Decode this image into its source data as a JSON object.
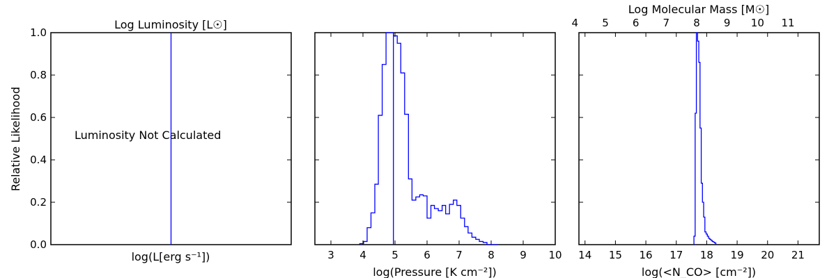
{
  "chart_data": [
    {
      "type": "line",
      "panel": "luminosity",
      "title": "Log Luminosity  [L☉]",
      "xlabel": "log(L[erg s⁻¹])",
      "ylabel": "Relative Likelihood",
      "ylim": [
        0,
        1
      ],
      "yticks": [
        "0.0",
        "0.2",
        "0.4",
        "0.6",
        "0.8",
        "1.0"
      ],
      "xticks": [],
      "annotation": "Luminosity Not Calculated",
      "vline_fraction": 0.5,
      "line_color": "#0000ff"
    },
    {
      "type": "histogram",
      "panel": "pressure",
      "xlabel": "log(Pressure [K cm⁻²])",
      "xlim": [
        2.5,
        10
      ],
      "ylim": [
        0,
        1
      ],
      "xticks": [
        3,
        4,
        5,
        6,
        7,
        8,
        9,
        10
      ],
      "bin_edges": [
        3.9,
        4.02,
        4.13,
        4.25,
        4.37,
        4.48,
        4.6,
        4.72,
        4.83,
        4.95,
        5.07,
        5.18,
        5.3,
        5.42,
        5.53,
        5.65,
        5.77,
        5.88,
        6.0,
        6.12,
        6.23,
        6.35,
        6.47,
        6.58,
        6.7,
        6.82,
        6.93,
        7.05,
        7.17,
        7.28,
        7.4,
        7.52,
        7.63,
        7.75,
        7.87,
        7.98,
        8.1,
        8.22
      ],
      "values": [
        0.005,
        0.015,
        0.08,
        0.15,
        0.285,
        0.61,
        0.85,
        1.0,
        1.0,
        0.985,
        0.95,
        0.81,
        0.615,
        0.31,
        0.21,
        0.225,
        0.235,
        0.23,
        0.125,
        0.185,
        0.17,
        0.16,
        0.185,
        0.145,
        0.19,
        0.21,
        0.185,
        0.125,
        0.085,
        0.055,
        0.035,
        0.025,
        0.015,
        0.01,
        0.0,
        0.0,
        0.0
      ],
      "vline_x": 4.95,
      "line_color": "#0000ff"
    },
    {
      "type": "histogram",
      "panel": "column-density",
      "xlabel": "log(<N_CO> [cm⁻²])",
      "top_xlabel": "Log Molecular Mass [M☉]",
      "xlim": [
        13.8,
        21.7
      ],
      "ylim": [
        0,
        1
      ],
      "xticks": [
        14,
        15,
        16,
        17,
        18,
        19,
        20,
        21
      ],
      "top_xticks": [
        4,
        5,
        6,
        7,
        8,
        9,
        10,
        11
      ],
      "top_xticks_at": [
        13.67,
        14.67,
        15.67,
        16.67,
        17.67,
        18.67,
        19.67,
        20.67
      ],
      "bin_edges": [
        17.58,
        17.62,
        17.66,
        17.7,
        17.74,
        17.78,
        17.82,
        17.86,
        17.9,
        17.94,
        17.98,
        18.02,
        18.06,
        18.1,
        18.14,
        18.18,
        18.22,
        18.26,
        18.3
      ],
      "values": [
        0.04,
        0.62,
        1.0,
        0.96,
        0.86,
        0.55,
        0.29,
        0.2,
        0.13,
        0.06,
        0.05,
        0.04,
        0.03,
        0.025,
        0.02,
        0.015,
        0.012,
        0.008
      ],
      "line_color": "#0000ff"
    }
  ]
}
